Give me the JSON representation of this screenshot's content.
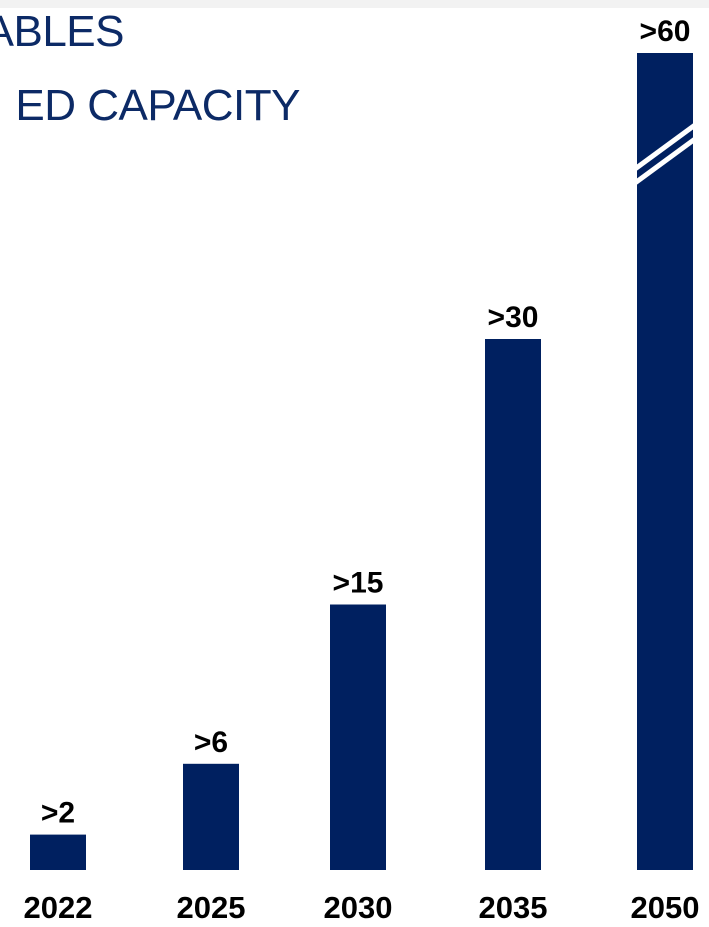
{
  "title_lines": [
    "ABLES",
    "ED CAPACITY"
  ],
  "chart_data": {
    "type": "bar",
    "categories": [
      "2022",
      "2025",
      "2030",
      "2035",
      "2050"
    ],
    "values": [
      2,
      6,
      15,
      30,
      60
    ],
    "data_labels": [
      ">2",
      ">6",
      ">15",
      ">30",
      ">60"
    ],
    "axis_break_on": "2050",
    "grid": false,
    "legend": "none",
    "colors": {
      "bar": "#002060",
      "title": "#0c2a66"
    }
  }
}
